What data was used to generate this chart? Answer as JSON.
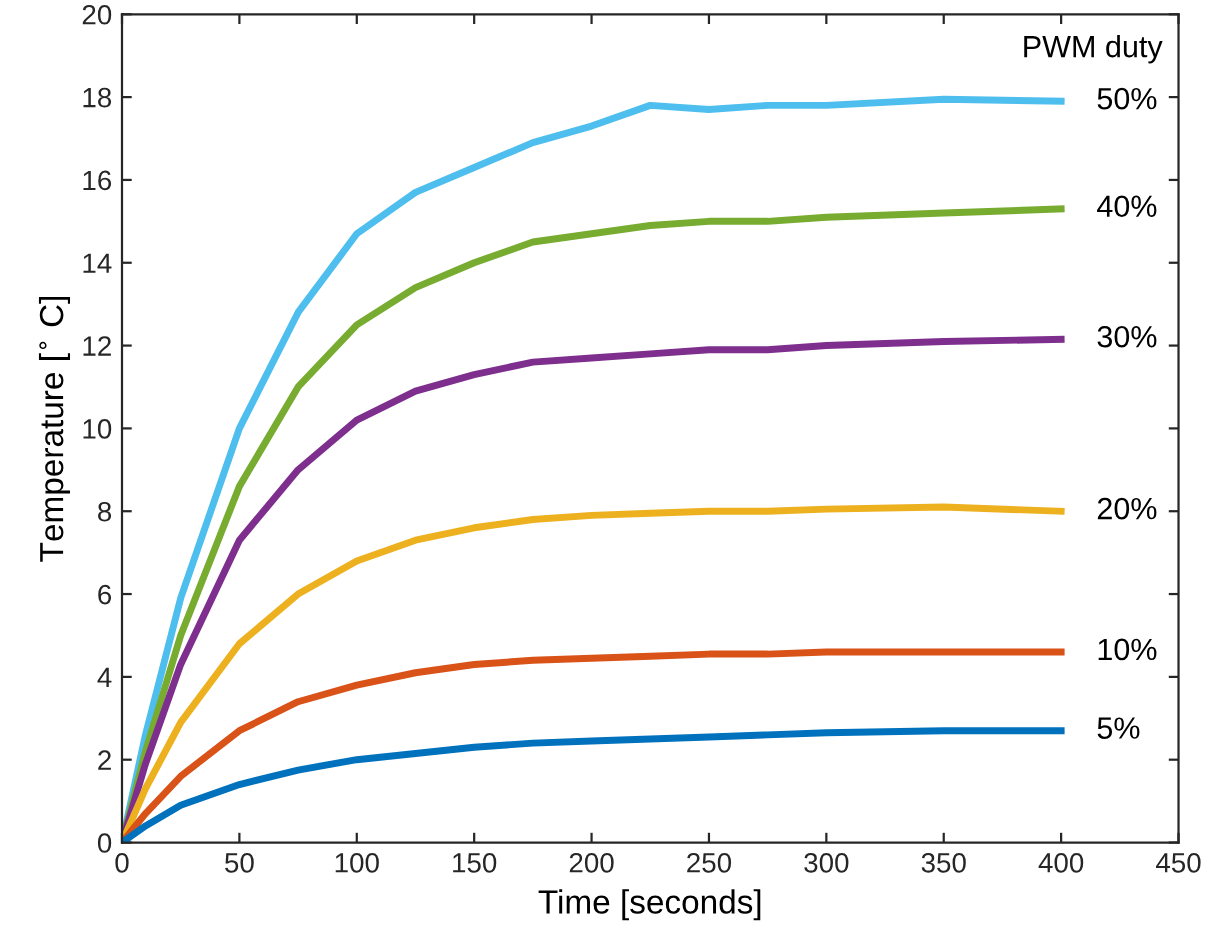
{
  "chart_data": {
    "type": "line",
    "xlabel": "Time [seconds]",
    "ylabel": "Temperature [$^{∘}$ C]",
    "legend_title": "PWM duty",
    "x": [
      0,
      10,
      25,
      50,
      75,
      100,
      125,
      150,
      175,
      200,
      225,
      250,
      275,
      300,
      350,
      400
    ],
    "series": [
      {
        "name": "50%",
        "color": "#4dbeee",
        "values": [
          0,
          2.6,
          5.9,
          10.0,
          12.8,
          14.7,
          15.7,
          16.3,
          16.9,
          17.3,
          17.8,
          17.7,
          17.8,
          17.8,
          17.95,
          17.9
        ]
      },
      {
        "name": "40%",
        "color": "#77ac30",
        "values": [
          0,
          2.2,
          5.0,
          8.6,
          11.0,
          12.5,
          13.4,
          14.0,
          14.5,
          14.7,
          14.9,
          15.0,
          15.0,
          15.1,
          15.2,
          15.3
        ]
      },
      {
        "name": "30%",
        "color": "#7e2f8e",
        "values": [
          0,
          1.9,
          4.3,
          7.3,
          9.0,
          10.2,
          10.9,
          11.3,
          11.6,
          11.7,
          11.8,
          11.9,
          11.9,
          12.0,
          12.1,
          12.15
        ]
      },
      {
        "name": "20%",
        "color": "#edb120",
        "values": [
          0,
          1.3,
          2.9,
          4.8,
          6.0,
          6.8,
          7.3,
          7.6,
          7.8,
          7.9,
          7.95,
          8.0,
          8.0,
          8.05,
          8.1,
          8.0
        ]
      },
      {
        "name": "10%",
        "color": "#d95319",
        "values": [
          0,
          0.7,
          1.6,
          2.7,
          3.4,
          3.8,
          4.1,
          4.3,
          4.4,
          4.45,
          4.5,
          4.55,
          4.55,
          4.6,
          4.6,
          4.6
        ]
      },
      {
        "name": "5%",
        "color": "#0072bd",
        "values": [
          0,
          0.4,
          0.9,
          1.4,
          1.75,
          2.0,
          2.15,
          2.3,
          2.4,
          2.45,
          2.5,
          2.55,
          2.6,
          2.65,
          2.7,
          2.7
        ]
      }
    ],
    "xlim": [
      0,
      450
    ],
    "ylim": [
      0,
      20
    ],
    "xticks": [
      0,
      50,
      100,
      150,
      200,
      250,
      300,
      350,
      400,
      450
    ],
    "yticks": [
      0,
      2,
      4,
      6,
      8,
      10,
      12,
      14,
      16,
      18,
      20
    ],
    "line_style": "solid",
    "marker": "none"
  }
}
